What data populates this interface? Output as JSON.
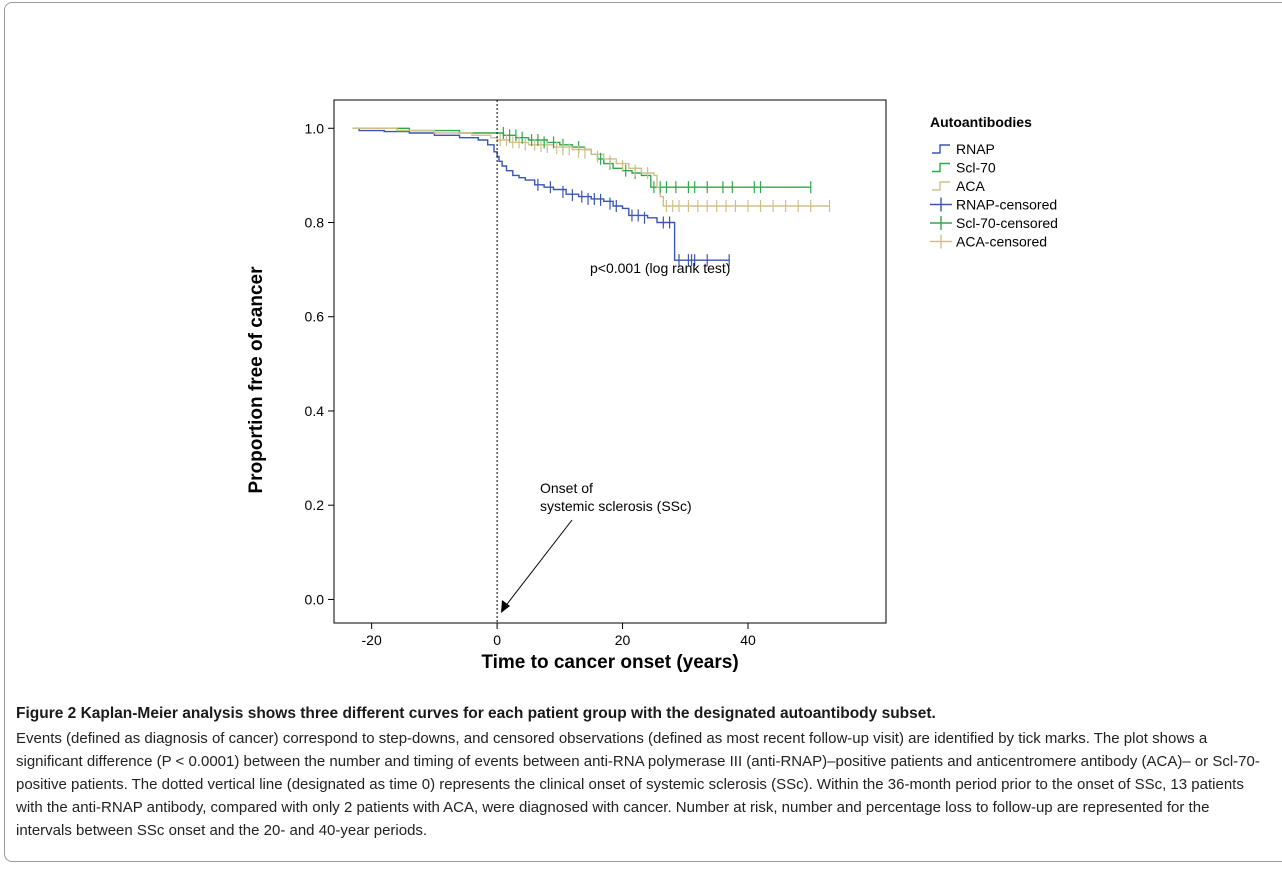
{
  "chart_data": {
    "type": "line",
    "title": "",
    "xlabel": "Time to cancer onset (years)",
    "ylabel": "Proportion free of cancer",
    "xlim": [
      -26,
      62
    ],
    "ylim": [
      -0.05,
      1.06
    ],
    "xticks": [
      -20,
      0,
      20,
      40
    ],
    "yticks": [
      0.0,
      0.2,
      0.4,
      0.6,
      0.8,
      1.0
    ],
    "ytick_labels": [
      "0.0",
      "0.2",
      "0.4",
      "0.6",
      "0.8",
      "1.0"
    ],
    "xtick_labels": [
      "-20",
      "0",
      "20",
      "40"
    ],
    "grid": false,
    "legend": {
      "title": "Autoantibodies",
      "placement": "right",
      "entries": [
        "RNAP",
        "Scl-70",
        "ACA",
        "RNAP-censored",
        "Scl-70-censored",
        "ACA-censored"
      ]
    },
    "annotations": {
      "pvalue": "p<0.001 (log rank test)",
      "onset_line1": "Onset of",
      "onset_line2": "systemic sclerosis (SSc)",
      "onset_x": 0
    },
    "series": [
      {
        "name": "RNAP",
        "color": "#3a55b4",
        "steps": [
          [
            -23,
            1.0
          ],
          [
            -22,
            0.995
          ],
          [
            -18,
            0.993
          ],
          [
            -14,
            0.99
          ],
          [
            -10,
            0.985
          ],
          [
            -6,
            0.98
          ],
          [
            -3,
            0.975
          ],
          [
            -1.5,
            0.965
          ],
          [
            -0.5,
            0.95
          ],
          [
            0,
            0.94
          ],
          [
            0.3,
            0.93
          ],
          [
            0.8,
            0.92
          ],
          [
            1.5,
            0.91
          ],
          [
            2.5,
            0.9
          ],
          [
            3.5,
            0.895
          ],
          [
            4.5,
            0.89
          ],
          [
            6,
            0.88
          ],
          [
            7.5,
            0.875
          ],
          [
            9,
            0.87
          ],
          [
            11,
            0.86
          ],
          [
            13,
            0.855
          ],
          [
            15,
            0.85
          ],
          [
            17,
            0.845
          ],
          [
            18.5,
            0.835
          ],
          [
            20,
            0.83
          ],
          [
            21,
            0.815
          ],
          [
            24,
            0.81
          ],
          [
            25.5,
            0.8
          ],
          [
            28,
            0.8
          ],
          [
            28.3,
            0.72
          ],
          [
            37,
            0.72
          ]
        ],
        "censored": [
          [
            6.5,
            0.88
          ],
          [
            8.5,
            0.875
          ],
          [
            10.5,
            0.865
          ],
          [
            12,
            0.858
          ],
          [
            13.5,
            0.855
          ],
          [
            14.5,
            0.85
          ],
          [
            15.5,
            0.85
          ],
          [
            16.5,
            0.848
          ],
          [
            18,
            0.84
          ],
          [
            19,
            0.835
          ],
          [
            21.5,
            0.815
          ],
          [
            22.5,
            0.815
          ],
          [
            23.5,
            0.81
          ],
          [
            26.5,
            0.8
          ],
          [
            27.5,
            0.8
          ],
          [
            29,
            0.72
          ],
          [
            30.5,
            0.72
          ],
          [
            31,
            0.72
          ],
          [
            31.5,
            0.72
          ],
          [
            33.5,
            0.72
          ],
          [
            37,
            0.72
          ]
        ]
      },
      {
        "name": "Scl-70",
        "color": "#2fa84a",
        "steps": [
          [
            -23,
            1.0
          ],
          [
            -14,
            0.995
          ],
          [
            -6,
            0.99
          ],
          [
            0,
            0.99
          ],
          [
            1,
            0.985
          ],
          [
            3,
            0.98
          ],
          [
            5,
            0.975
          ],
          [
            8,
            0.97
          ],
          [
            10,
            0.965
          ],
          [
            12,
            0.96
          ],
          [
            14,
            0.955
          ],
          [
            15,
            0.945
          ],
          [
            16,
            0.935
          ],
          [
            17,
            0.925
          ],
          [
            18.5,
            0.915
          ],
          [
            20,
            0.91
          ],
          [
            21.5,
            0.905
          ],
          [
            23,
            0.9
          ],
          [
            24,
            0.9
          ],
          [
            24.5,
            0.875
          ],
          [
            50,
            0.875
          ]
        ],
        "censored": [
          [
            1,
            0.99
          ],
          [
            2,
            0.985
          ],
          [
            3,
            0.985
          ],
          [
            4,
            0.98
          ],
          [
            5.5,
            0.975
          ],
          [
            6.5,
            0.975
          ],
          [
            7.5,
            0.97
          ],
          [
            9,
            0.97
          ],
          [
            10.5,
            0.965
          ],
          [
            13,
            0.96
          ],
          [
            16.5,
            0.935
          ],
          [
            18,
            0.925
          ],
          [
            20.5,
            0.91
          ],
          [
            22,
            0.905
          ],
          [
            25,
            0.875
          ],
          [
            26,
            0.875
          ],
          [
            27,
            0.875
          ],
          [
            28.5,
            0.875
          ],
          [
            30.5,
            0.875
          ],
          [
            31.5,
            0.875
          ],
          [
            33.5,
            0.875
          ],
          [
            36,
            0.875
          ],
          [
            37.5,
            0.875
          ],
          [
            41,
            0.875
          ],
          [
            42,
            0.875
          ],
          [
            50,
            0.875
          ]
        ]
      },
      {
        "name": "ACA",
        "color": "#cfc08a",
        "steps": [
          [
            -23,
            1.0
          ],
          [
            -16,
            0.995
          ],
          [
            -10,
            0.99
          ],
          [
            -4,
            0.985
          ],
          [
            -1,
            0.98
          ],
          [
            0,
            0.975
          ],
          [
            2,
            0.97
          ],
          [
            5,
            0.965
          ],
          [
            9,
            0.96
          ],
          [
            12,
            0.955
          ],
          [
            15,
            0.945
          ],
          [
            17,
            0.935
          ],
          [
            19,
            0.925
          ],
          [
            21,
            0.915
          ],
          [
            23,
            0.905
          ],
          [
            25,
            0.9
          ],
          [
            25.5,
            0.875
          ],
          [
            26,
            0.855
          ],
          [
            26.5,
            0.835
          ],
          [
            53,
            0.835
          ]
        ],
        "censored": [
          [
            0.5,
            0.975
          ],
          [
            1.5,
            0.975
          ],
          [
            2.5,
            0.97
          ],
          [
            3.5,
            0.97
          ],
          [
            4.5,
            0.965
          ],
          [
            6,
            0.965
          ],
          [
            7,
            0.962
          ],
          [
            8,
            0.96
          ],
          [
            9.5,
            0.958
          ],
          [
            10.5,
            0.955
          ],
          [
            11.5,
            0.955
          ],
          [
            13,
            0.95
          ],
          [
            14,
            0.948
          ],
          [
            16,
            0.94
          ],
          [
            18,
            0.93
          ],
          [
            20,
            0.92
          ],
          [
            22,
            0.91
          ],
          [
            24,
            0.905
          ],
          [
            27,
            0.835
          ],
          [
            28,
            0.835
          ],
          [
            29,
            0.835
          ],
          [
            30.5,
            0.835
          ],
          [
            32,
            0.835
          ],
          [
            33.5,
            0.835
          ],
          [
            35,
            0.835
          ],
          [
            36.5,
            0.835
          ],
          [
            38,
            0.835
          ],
          [
            40,
            0.835
          ],
          [
            42,
            0.835
          ],
          [
            44,
            0.835
          ],
          [
            46,
            0.835
          ],
          [
            48,
            0.835
          ],
          [
            50,
            0.835
          ],
          [
            53,
            0.835
          ]
        ]
      }
    ]
  },
  "caption": {
    "title": "Figure 2 Kaplan-Meier analysis shows three different curves for each patient group with the designated autoantibody subset.",
    "body": "Events (defined as diagnosis of cancer) correspond to step-downs, and censored observations (defined as most recent follow-up visit) are identified by tick marks. The plot shows a significant difference (P < 0.0001) between the number and timing of events between anti-RNA polymerase III (anti-RNAP)–positive patients and anticentromere antibody (ACA)– or Scl-70-positive patients. The dotted vertical line (designated as time 0) represents the clinical onset of systemic sclerosis (SSc). Within the 36-month period prior to the onset of SSc, 13 patients with the anti-RNAP antibody, compared with only 2 patients with ACA, were diagnosed with cancer. Number at risk, number and percentage loss to follow-up are represented for the intervals between SSc onset and the 20- and 40-year periods."
  }
}
